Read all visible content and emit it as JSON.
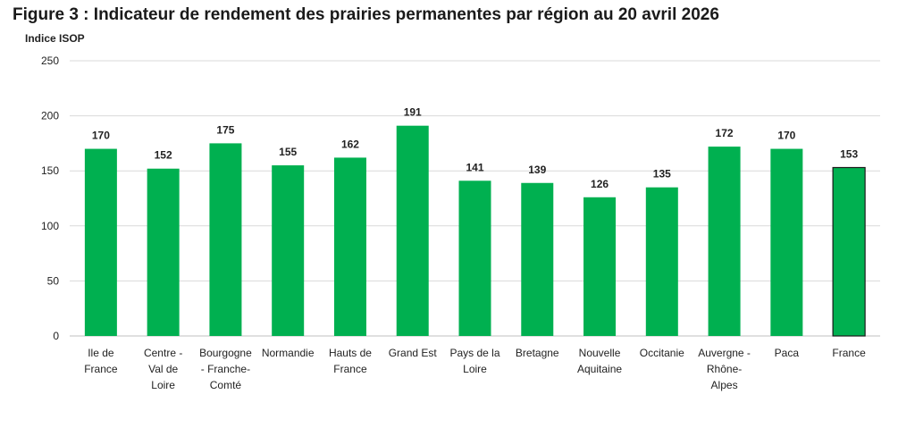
{
  "title": "Figure 3 : Indicateur de rendement des prairies permanentes par région au 20 avril 2026",
  "chart_data": {
    "type": "bar",
    "title": "Figure 3 : Indicateur de rendement des prairies permanentes par région au 20 avril 2026",
    "ylabel": "Indice ISOP",
    "xlabel": "",
    "ylim": [
      0,
      250
    ],
    "yticks": [
      0,
      50,
      100,
      150,
      200,
      250
    ],
    "grid": true,
    "categories": [
      [
        "Ile de",
        "France"
      ],
      [
        "Centre -",
        "Val de",
        "Loire"
      ],
      [
        "Bourgogne",
        "- Franche-",
        "Comté"
      ],
      [
        "Normandie"
      ],
      [
        "Hauts de",
        "France"
      ],
      [
        "Grand Est"
      ],
      [
        "Pays de la",
        "Loire"
      ],
      [
        "Bretagne"
      ],
      [
        "Nouvelle",
        "Aquitaine"
      ],
      [
        "Occitanie"
      ],
      [
        "Auvergne -",
        "Rhône-",
        "Alpes"
      ],
      [
        "Paca"
      ],
      [
        "France"
      ]
    ],
    "values": [
      170,
      152,
      175,
      155,
      162,
      191,
      141,
      139,
      126,
      135,
      172,
      170,
      153
    ],
    "bar_color": "#00b050",
    "highlight_index": 12,
    "highlight_outline": "#1a1a1a"
  }
}
